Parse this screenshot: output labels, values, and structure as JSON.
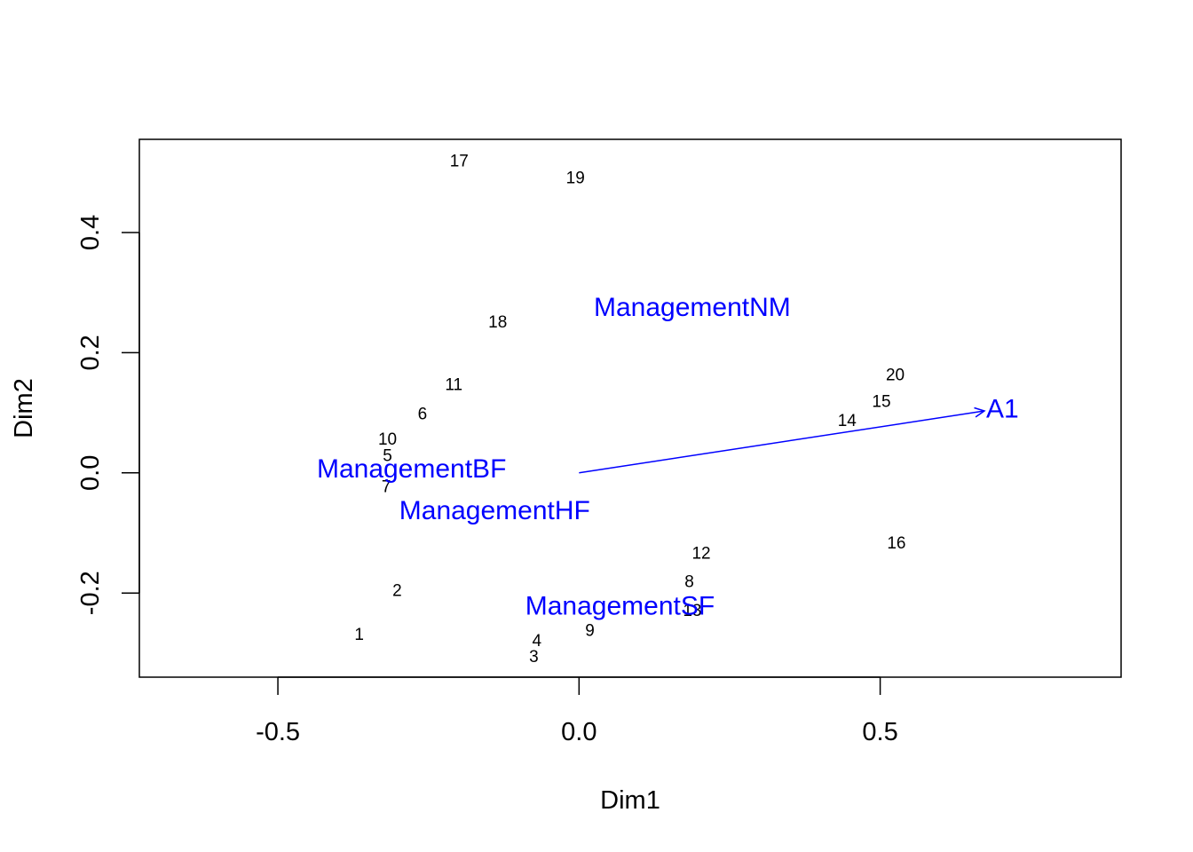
{
  "chart_data": {
    "type": "scatter",
    "title": "",
    "xlabel": "Dim1",
    "ylabel": "Dim2",
    "xlim": [
      -0.73,
      0.9
    ],
    "ylim": [
      -0.34,
      0.555
    ],
    "xticks": [
      -0.5,
      0.0,
      0.5
    ],
    "yticks": [
      -0.2,
      0.0,
      0.2,
      0.4
    ],
    "xtick_labels": [
      "-0.5",
      "0.0",
      "0.5"
    ],
    "ytick_labels": [
      "-0.2",
      "0.0",
      "0.2",
      "0.4"
    ],
    "grid": false,
    "sites": [
      {
        "label": "1",
        "x": -0.365,
        "y": -0.27
      },
      {
        "label": "2",
        "x": -0.302,
        "y": -0.197
      },
      {
        "label": "3",
        "x": -0.075,
        "y": -0.307
      },
      {
        "label": "4",
        "x": -0.07,
        "y": -0.28
      },
      {
        "label": "5",
        "x": -0.318,
        "y": 0.028
      },
      {
        "label": "6",
        "x": -0.26,
        "y": 0.097
      },
      {
        "label": "7",
        "x": -0.32,
        "y": -0.024
      },
      {
        "label": "8",
        "x": 0.183,
        "y": -0.182
      },
      {
        "label": "9",
        "x": 0.018,
        "y": -0.263
      },
      {
        "label": "10",
        "x": -0.318,
        "y": 0.055
      },
      {
        "label": "11",
        "x": -0.208,
        "y": 0.146
      },
      {
        "label": "12",
        "x": 0.203,
        "y": -0.135
      },
      {
        "label": "13",
        "x": 0.188,
        "y": -0.23
      },
      {
        "label": "14",
        "x": 0.445,
        "y": 0.086
      },
      {
        "label": "15",
        "x": 0.502,
        "y": 0.118
      },
      {
        "label": "16",
        "x": 0.527,
        "y": -0.118
      },
      {
        "label": "17",
        "x": -0.199,
        "y": 0.518
      },
      {
        "label": "18",
        "x": -0.135,
        "y": 0.25
      },
      {
        "label": "19",
        "x": -0.006,
        "y": 0.49
      },
      {
        "label": "20",
        "x": 0.525,
        "y": 0.162
      }
    ],
    "factors": [
      {
        "label": "ManagementNM",
        "x": 0.188,
        "y": 0.275
      },
      {
        "label": "ManagementBF",
        "x": -0.278,
        "y": 0.006
      },
      {
        "label": "ManagementHF",
        "x": -0.14,
        "y": -0.063
      },
      {
        "label": "ManagementSF",
        "x": 0.068,
        "y": -0.222
      }
    ],
    "vectors": [
      {
        "label": "A1",
        "x0": 0.0,
        "y0": 0.0,
        "x1": 0.673,
        "y1": 0.103,
        "label_x": 0.703,
        "label_y": 0.106
      }
    ],
    "colors": {
      "sites": "#000000",
      "factors": "#0000ff",
      "vectors": "#0000ff",
      "axes": "#000000"
    }
  }
}
